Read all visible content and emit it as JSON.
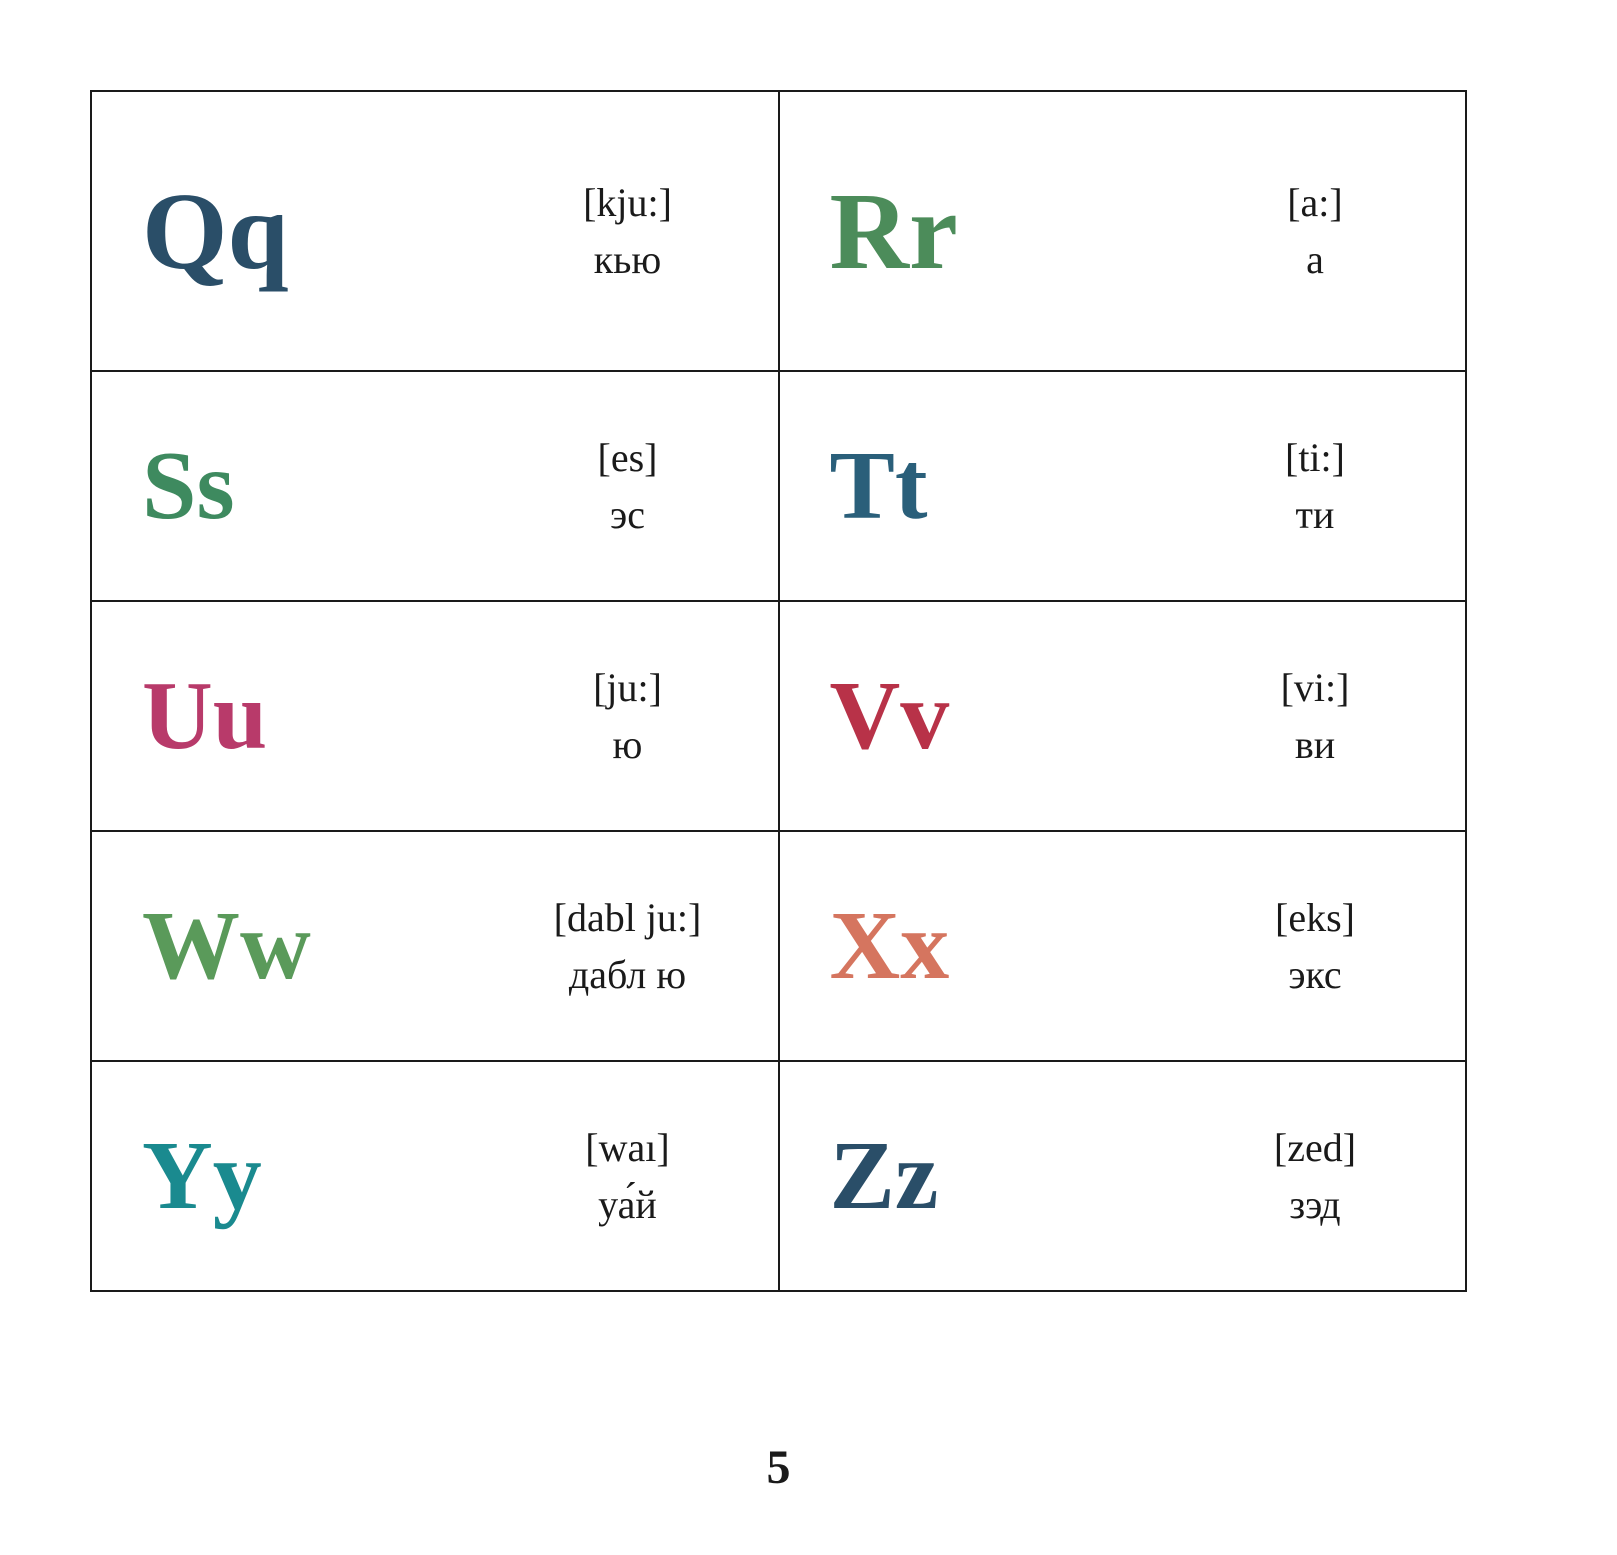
{
  "page_number": "5",
  "table": {
    "rows": 5,
    "cols": 2,
    "border_color": "#1a1a1a",
    "background": "#ffffff",
    "letter_fontsize": 98,
    "letter_fontsize_row1": 110,
    "text_fontsize": 40,
    "text_color": "#1a1a1a",
    "cells": [
      {
        "letter": "Qq",
        "color": "#2a4e68",
        "ipa": "[kju:]",
        "translit": "кью"
      },
      {
        "letter": "Rr",
        "color": "#4c8c5a",
        "ipa": "[a:]",
        "translit": "а"
      },
      {
        "letter": "Ss",
        "color": "#3e8a5f",
        "ipa": "[es]",
        "translit": "эс"
      },
      {
        "letter": "Tt",
        "color": "#2a5f7a",
        "ipa": "[ti:]",
        "translit": "ти"
      },
      {
        "letter": "Uu",
        "color": "#b83a6a",
        "ipa": "[ju:]",
        "translit": "ю"
      },
      {
        "letter": "Vv",
        "color": "#b83248",
        "ipa": "[vi:]",
        "translit": "ви"
      },
      {
        "letter": "Ww",
        "color": "#5a9a5a",
        "ipa": "[dabl ju:]",
        "translit": "дабл ю"
      },
      {
        "letter": "Xx",
        "color": "#d5755f",
        "ipa": "[eks]",
        "translit": "экс"
      },
      {
        "letter": "Yy",
        "color": "#1a8a8f",
        "ipa": "[waı]",
        "translit": "уа́й"
      },
      {
        "letter": "Zz",
        "color": "#2a4e68",
        "ipa": "[zed]",
        "translit": "зэд"
      }
    ]
  }
}
